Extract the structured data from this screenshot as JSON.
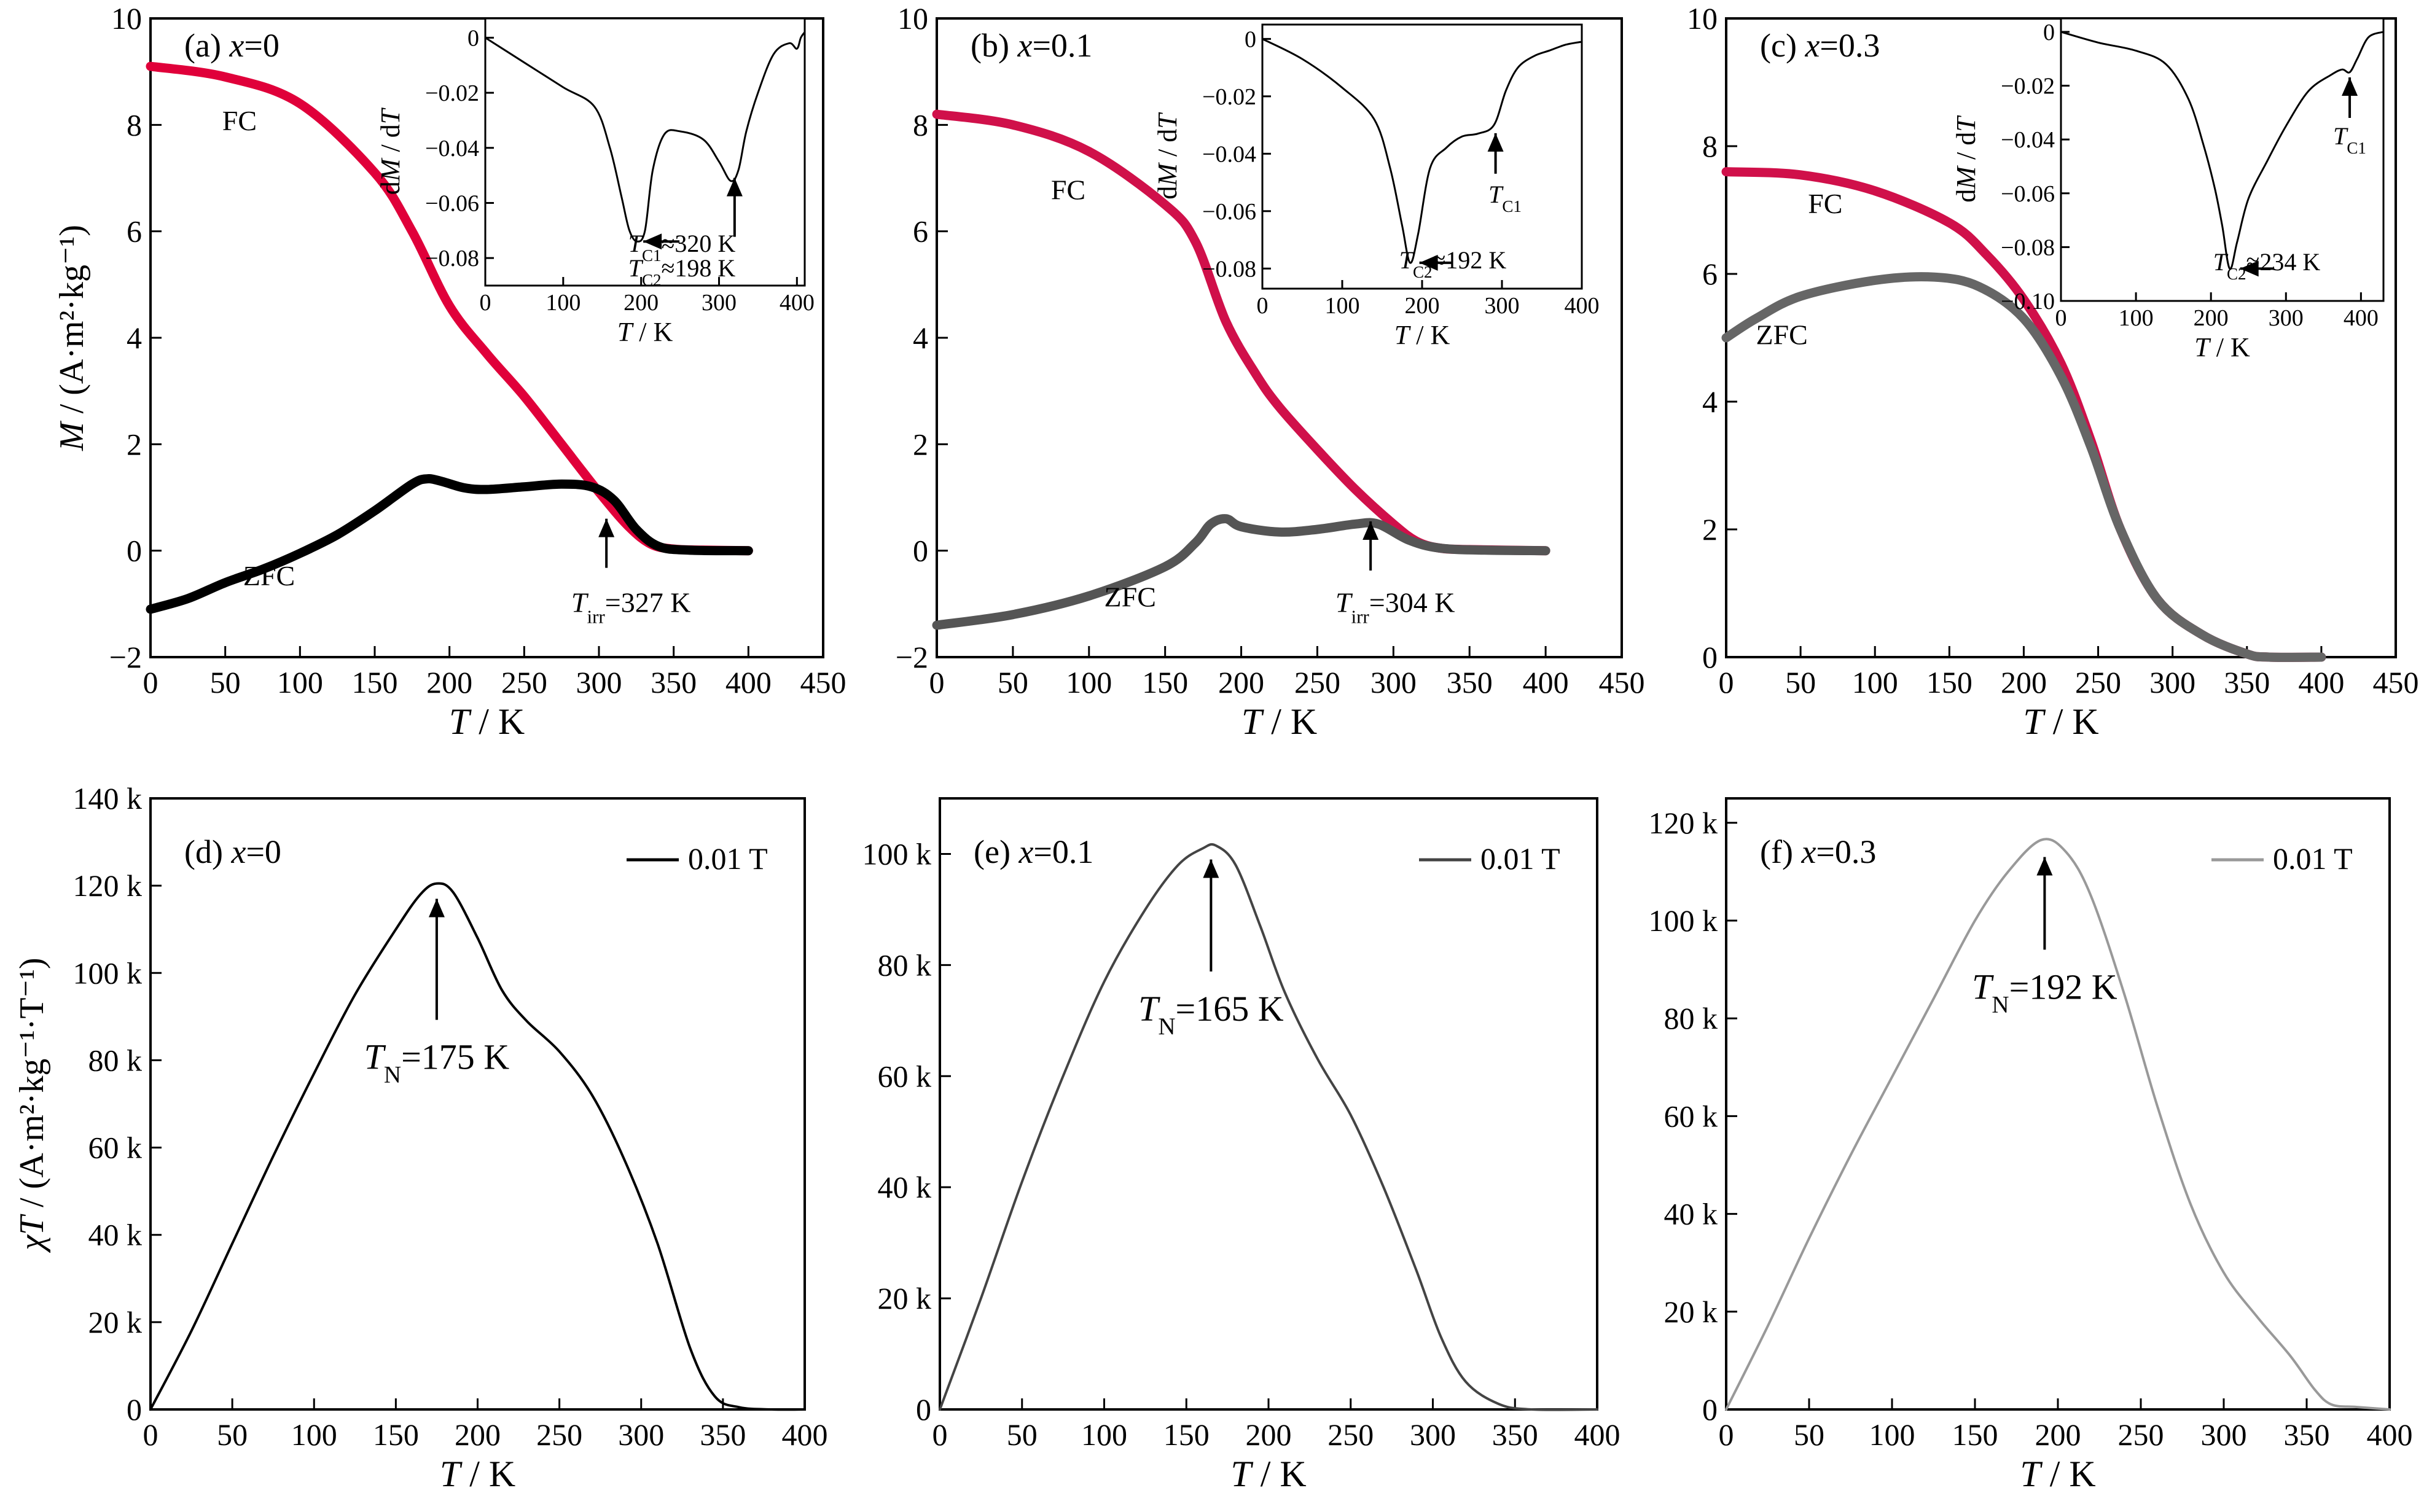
{
  "chart_data": [
    {
      "id": "a",
      "type": "line",
      "panel_label": "(a)",
      "composition": "x=0",
      "xlabel": "T / K",
      "ylabel": "M / (A·m²·kg⁻¹)",
      "xlim": [
        0,
        450
      ],
      "ylim": [
        -2,
        10
      ],
      "xticks": [
        "0",
        "50",
        "100",
        "150",
        "200",
        "250",
        "300",
        "350",
        "400",
        "450"
      ],
      "yticks": [
        "−2",
        "0",
        "2",
        "4",
        "6",
        "8",
        "10"
      ],
      "series": [
        {
          "name": "FC",
          "color": "#e0003a",
          "width": 15,
          "x": [
            0,
            50,
            100,
            150,
            175,
            200,
            225,
            250,
            275,
            300,
            320,
            335,
            350,
            370,
            400
          ],
          "y": [
            9.1,
            8.9,
            8.4,
            7.1,
            6.0,
            4.6,
            3.7,
            2.9,
            2.0,
            1.1,
            0.45,
            0.12,
            0.03,
            0.01,
            0.0
          ]
        },
        {
          "name": "ZFC",
          "color": "#000000",
          "width": 15,
          "x": [
            0,
            25,
            50,
            75,
            100,
            125,
            150,
            175,
            185,
            195,
            210,
            225,
            250,
            275,
            295,
            310,
            325,
            340,
            360,
            400
          ],
          "y": [
            -1.1,
            -0.9,
            -0.6,
            -0.35,
            -0.05,
            0.3,
            0.75,
            1.25,
            1.35,
            1.3,
            1.18,
            1.15,
            1.2,
            1.25,
            1.2,
            0.95,
            0.4,
            0.08,
            0.01,
            0.0
          ]
        }
      ],
      "labels": [
        {
          "text": "FC",
          "x": 48,
          "y": 7.9
        },
        {
          "text": "ZFC",
          "x": 62,
          "y": -0.65
        }
      ],
      "annotations": [
        {
          "text": "T_irr=327 K",
          "main": "T",
          "sub": "irr",
          "rest": "=327 K",
          "arrow_x": 305,
          "arrow_y": 0.6,
          "text_x": 305,
          "text_y": -1.15
        }
      ],
      "inset": {
        "xlabel": "T / K",
        "ylabel": "dM / dT",
        "xlim": [
          0,
          410
        ],
        "ylim": [
          -0.09,
          0.007
        ],
        "xticks": [
          "0",
          "100",
          "200",
          "300",
          "400"
        ],
        "yticks": [
          "0",
          "−0.02",
          "−0.04",
          "−0.06",
          "−0.08"
        ],
        "series": [
          {
            "x": [
              0,
              50,
              100,
              140,
              160,
              175,
              185,
              195,
              205,
              215,
              230,
              250,
              280,
              300,
              315,
              325,
              335,
              350,
              370,
              390,
              400,
              405,
              410
            ],
            "y": [
              0.0,
              -0.009,
              -0.018,
              -0.025,
              -0.04,
              -0.058,
              -0.07,
              -0.074,
              -0.07,
              -0.048,
              -0.035,
              -0.034,
              -0.037,
              -0.045,
              -0.052,
              -0.048,
              -0.034,
              -0.02,
              -0.006,
              -0.002,
              -0.004,
              0.0,
              0.002
            ]
          }
        ],
        "annotations": [
          {
            "text": "T_C1≈320 K",
            "main": "T",
            "sub": "C1",
            "rest": "≈320 K"
          },
          {
            "text": "T_C2≈198 K",
            "main": "T",
            "sub": "C2",
            "rest": "≈198 K"
          }
        ]
      }
    },
    {
      "id": "b",
      "type": "line",
      "panel_label": "(b)",
      "composition": "x=0.1",
      "xlabel": "T / K",
      "ylabel": "",
      "xlim": [
        0,
        450
      ],
      "ylim": [
        -2,
        10
      ],
      "xticks": [
        "0",
        "50",
        "100",
        "150",
        "200",
        "250",
        "300",
        "350",
        "400",
        "450"
      ],
      "yticks": [
        "−2",
        "0",
        "2",
        "4",
        "6",
        "8",
        "10"
      ],
      "series": [
        {
          "name": "FC",
          "color": "#d0104a",
          "width": 15,
          "x": [
            0,
            50,
            100,
            150,
            170,
            190,
            210,
            225,
            250,
            275,
            300,
            315,
            330,
            350,
            400
          ],
          "y": [
            8.2,
            8.0,
            7.5,
            6.5,
            5.8,
            4.3,
            3.3,
            2.7,
            1.9,
            1.15,
            0.5,
            0.18,
            0.05,
            0.02,
            0.0
          ]
        },
        {
          "name": "ZFC",
          "color": "#555555",
          "width": 15,
          "x": [
            0,
            50,
            100,
            150,
            170,
            180,
            190,
            200,
            225,
            250,
            275,
            290,
            310,
            330,
            360,
            400
          ],
          "y": [
            -1.4,
            -1.2,
            -0.85,
            -0.3,
            0.15,
            0.5,
            0.6,
            0.45,
            0.35,
            0.4,
            0.5,
            0.5,
            0.2,
            0.05,
            0.01,
            0.0
          ]
        }
      ],
      "labels": [
        {
          "text": "FC",
          "x": 75,
          "y": 6.6
        },
        {
          "text": "ZFC",
          "x": 110,
          "y": -1.05
        }
      ],
      "annotations": [
        {
          "text": "T_irr=304 K",
          "main": "T",
          "sub": "irr",
          "rest": "=304 K",
          "arrow_x": 285,
          "arrow_y": 0.55,
          "text_x": 285,
          "text_y": -1.15
        }
      ],
      "inset": {
        "xlabel": "T / K",
        "ylabel": "dM / dT",
        "xlim": [
          0,
          400
        ],
        "ylim": [
          -0.087,
          0.005
        ],
        "xticks": [
          "0",
          "100",
          "200",
          "300",
          "400"
        ],
        "yticks": [
          "0",
          "−0.02",
          "−0.04",
          "−0.06",
          "−0.08"
        ],
        "series": [
          {
            "x": [
              0,
              50,
              100,
              140,
              160,
              175,
              185,
              195,
              210,
              230,
              250,
              270,
              290,
              305,
              320,
              340,
              360,
              380,
              400
            ],
            "y": [
              0.0,
              -0.007,
              -0.017,
              -0.028,
              -0.045,
              -0.065,
              -0.078,
              -0.068,
              -0.045,
              -0.038,
              -0.034,
              -0.033,
              -0.03,
              -0.018,
              -0.01,
              -0.006,
              -0.004,
              -0.002,
              -0.001
            ]
          }
        ],
        "annotations": [
          {
            "text": "T_C1",
            "main": "T",
            "sub": "C1",
            "rest": ""
          },
          {
            "text": "T_C2≈192 K",
            "main": "T",
            "sub": "C2",
            "rest": "≈192 K"
          }
        ]
      }
    },
    {
      "id": "c",
      "type": "line",
      "panel_label": "(c)",
      "composition": "x=0.3",
      "xlabel": "T / K",
      "ylabel": "",
      "xlim": [
        0,
        450
      ],
      "ylim": [
        0,
        10
      ],
      "xticks": [
        "0",
        "50",
        "100",
        "150",
        "200",
        "250",
        "300",
        "350",
        "400",
        "450"
      ],
      "yticks": [
        "0",
        "2",
        "4",
        "6",
        "8",
        "10"
      ],
      "series": [
        {
          "name": "FC",
          "color": "#d0104a",
          "width": 15,
          "x": [
            0,
            50,
            100,
            150,
            175,
            200,
            225,
            245,
            265,
            290,
            320,
            350,
            365,
            400
          ],
          "y": [
            7.6,
            7.55,
            7.3,
            6.8,
            6.3,
            5.6,
            4.6,
            3.4,
            2.0,
            0.9,
            0.35,
            0.05,
            0.0,
            0.0
          ]
        },
        {
          "name": "ZFC",
          "color": "#666666",
          "width": 15,
          "x": [
            0,
            20,
            50,
            100,
            140,
            170,
            200,
            225,
            245,
            265,
            290,
            320,
            350,
            365,
            400
          ],
          "y": [
            5.0,
            5.3,
            5.65,
            5.9,
            5.95,
            5.8,
            5.3,
            4.4,
            3.3,
            2.0,
            0.9,
            0.35,
            0.05,
            0.0,
            0.0
          ]
        }
      ],
      "labels": [
        {
          "text": "FC",
          "x": 55,
          "y": 6.95
        },
        {
          "text": "ZFC",
          "x": 20,
          "y": 4.9
        }
      ],
      "annotations": [],
      "inset": {
        "xlabel": "T / K",
        "ylabel": "dM / dT",
        "xlim": [
          0,
          430
        ],
        "ylim": [
          -0.1,
          0.005
        ],
        "xticks": [
          "0",
          "100",
          "200",
          "300",
          "400"
        ],
        "yticks": [
          "0",
          "−0.02",
          "−0.04",
          "−0.06",
          "−0.08",
          "−0.10"
        ],
        "series": [
          {
            "x": [
              0,
              50,
              100,
              140,
              170,
              190,
              205,
              215,
              225,
              235,
              250,
              275,
              300,
              330,
              360,
              375,
              385,
              395,
              410,
              430
            ],
            "y": [
              0.0,
              -0.004,
              -0.007,
              -0.012,
              -0.025,
              -0.042,
              -0.058,
              -0.072,
              -0.088,
              -0.078,
              -0.062,
              -0.048,
              -0.035,
              -0.022,
              -0.016,
              -0.014,
              -0.015,
              -0.01,
              -0.002,
              0.0
            ]
          }
        ],
        "annotations": [
          {
            "text": "T_C1",
            "main": "T",
            "sub": "C1",
            "rest": ""
          },
          {
            "text": "T_C2≈234 K",
            "main": "T",
            "sub": "C2",
            "rest": "≈234 K"
          }
        ]
      }
    },
    {
      "id": "d",
      "type": "line",
      "panel_label": "(d)",
      "composition": "x=0",
      "xlabel": "T / K",
      "ylabel": "χT / (A·m²·kg⁻¹·T⁻¹)",
      "xlim": [
        0,
        400
      ],
      "ylim": [
        0,
        140000
      ],
      "xticks": [
        "0",
        "50",
        "100",
        "150",
        "200",
        "250",
        "300",
        "350",
        "400"
      ],
      "yticks": [
        "0",
        "20 k",
        "40 k",
        "60 k",
        "80 k",
        "100 k",
        "120 k",
        "140 k"
      ],
      "series": [
        {
          "name": "0.01 T",
          "color": "#000000",
          "width": 4,
          "x": [
            0,
            25,
            50,
            75,
            100,
            125,
            150,
            165,
            175,
            185,
            200,
            215,
            230,
            250,
            270,
            290,
            310,
            330,
            345,
            360,
            380,
            400
          ],
          "y": [
            0,
            18000,
            38000,
            58000,
            77000,
            95000,
            110000,
            118000,
            120500,
            118500,
            108000,
            96000,
            89000,
            82000,
            72000,
            57000,
            38000,
            14000,
            3000,
            500,
            0,
            0
          ]
        }
      ],
      "legend": {
        "label": "0.01 T",
        "position": "top-right"
      },
      "annotations": [
        {
          "text": "T_N=175 K",
          "main": "T",
          "sub": "N",
          "rest": "=175 K",
          "arrow_x": 175,
          "arrow_y": 117000,
          "text_x": 175,
          "text_y": 78000
        }
      ]
    },
    {
      "id": "e",
      "type": "line",
      "panel_label": "(e)",
      "composition": "x=0.1",
      "xlabel": "T / K",
      "ylabel": "",
      "xlim": [
        0,
        400
      ],
      "ylim": [
        0,
        110000
      ],
      "xticks": [
        "0",
        "50",
        "100",
        "150",
        "200",
        "250",
        "300",
        "350",
        "400"
      ],
      "yticks": [
        "0",
        "20 k",
        "40 k",
        "60 k",
        "80 k",
        "100 k"
      ],
      "series": [
        {
          "name": "0.01 T",
          "color": "#444444",
          "width": 4,
          "x": [
            0,
            25,
            50,
            75,
            100,
            125,
            145,
            160,
            168,
            180,
            195,
            210,
            230,
            250,
            270,
            290,
            305,
            320,
            340,
            360,
            400
          ],
          "y": [
            0,
            20000,
            41000,
            60000,
            77000,
            90000,
            98000,
            101000,
            101500,
            98000,
            87000,
            75000,
            63000,
            53000,
            40000,
            25000,
            13000,
            5000,
            1000,
            0,
            0
          ]
        }
      ],
      "legend": {
        "label": "0.01 T",
        "position": "top-right"
      },
      "annotations": [
        {
          "text": "T_N=165 K",
          "main": "T",
          "sub": "N",
          "rest": "=165 K",
          "arrow_x": 165,
          "arrow_y": 99000,
          "text_x": 165,
          "text_y": 70000
        }
      ]
    },
    {
      "id": "f",
      "type": "line",
      "panel_label": "(f)",
      "composition": "x=0.3",
      "xlabel": "T / K",
      "ylabel": "",
      "xlim": [
        0,
        400
      ],
      "ylim": [
        0,
        125000
      ],
      "xticks": [
        "0",
        "50",
        "100",
        "150",
        "200",
        "250",
        "300",
        "350",
        "400"
      ],
      "yticks": [
        "0",
        "20 k",
        "40 k",
        "60 k",
        "80 k",
        "100 k",
        "120 k"
      ],
      "series": [
        {
          "name": "0.01 T",
          "color": "#999999",
          "width": 4,
          "x": [
            0,
            25,
            50,
            75,
            100,
            125,
            150,
            170,
            190,
            205,
            220,
            240,
            260,
            280,
            300,
            320,
            340,
            355,
            365,
            380,
            400
          ],
          "y": [
            0,
            17000,
            35000,
            52000,
            68000,
            84000,
            100000,
            110000,
            116500,
            114000,
            105000,
            85000,
            62000,
            42000,
            28000,
            19000,
            11000,
            4000,
            1000,
            500,
            0
          ]
        }
      ],
      "legend": {
        "label": "0.01 T",
        "position": "top-right"
      },
      "annotations": [
        {
          "text": "T_N=192 K",
          "main": "T",
          "sub": "N",
          "rest": "=192 K",
          "arrow_x": 192,
          "arrow_y": 113000,
          "text_x": 192,
          "text_y": 84000
        }
      ]
    }
  ]
}
